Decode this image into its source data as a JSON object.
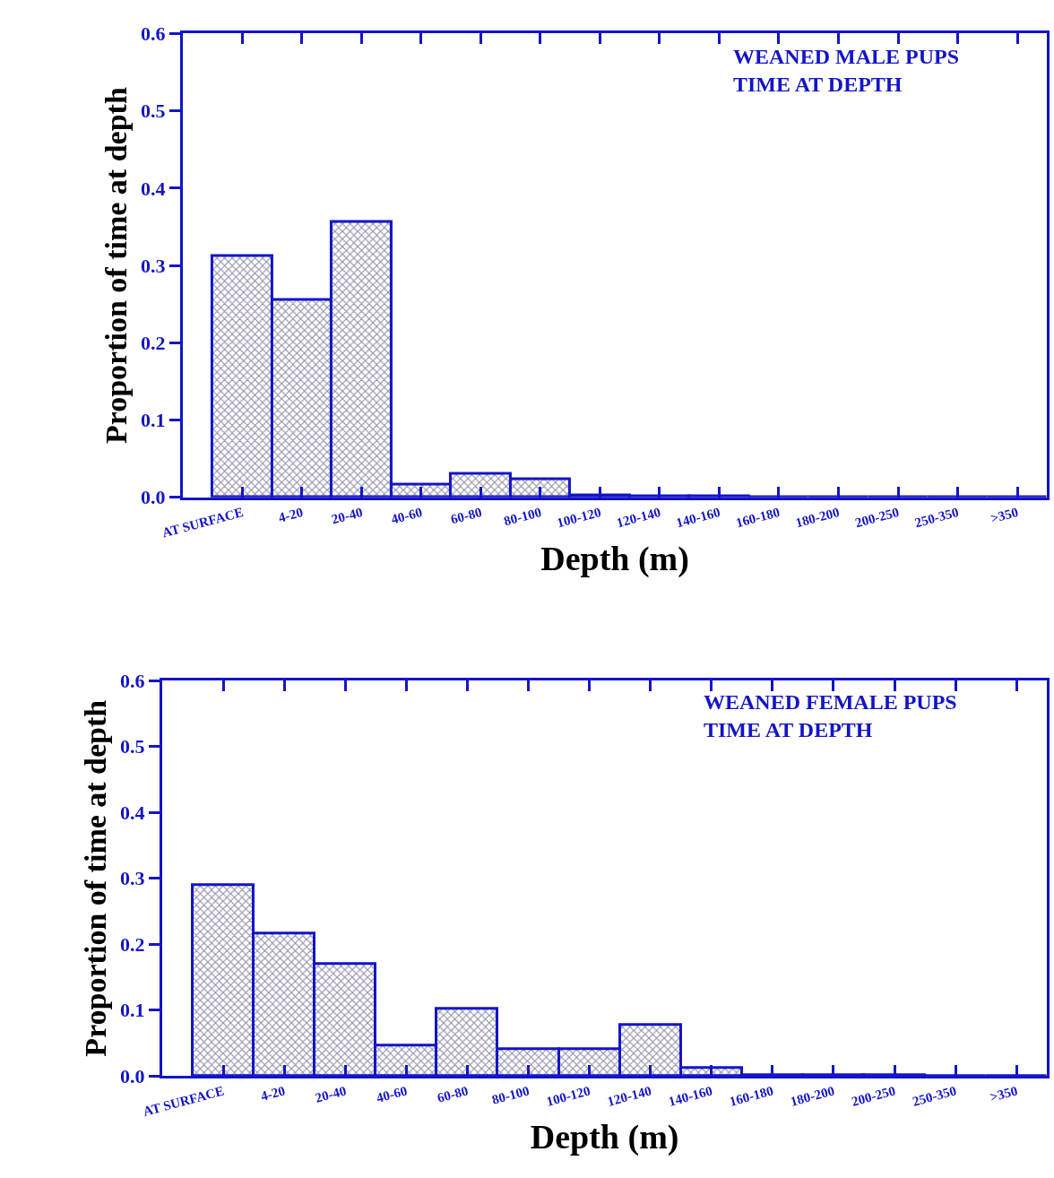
{
  "chart_data": [
    {
      "type": "bar",
      "xlabel": "Depth (m)",
      "ylabel": "Proportion of time at depth",
      "categories": [
        "AT SURFACE",
        "4-20",
        "20-40",
        "40-60",
        "60-80",
        "80-100",
        "100-120",
        "120-140",
        "140-160",
        "160-180",
        "180-200",
        "200-250",
        "250-350",
        ">350"
      ],
      "values": [
        0.312,
        0.255,
        0.357,
        0.017,
        0.031,
        0.024,
        0.003,
        0.002,
        0.001,
        0,
        0,
        0,
        0,
        0
      ],
      "color": "#1414c8",
      "ylim": [
        0,
        0.6
      ],
      "yticks": [
        {
          "value": 0,
          "label": "0.0"
        },
        0.1,
        0.2,
        0.3,
        0.4,
        0.5,
        0.6
      ],
      "annotations": [
        "WEANED MALE PUPS\nTIME AT DEPTH"
      ]
    },
    {
      "type": "bar",
      "xlabel": "Depth (m)",
      "ylabel": "Proportion of time at depth",
      "categories": [
        "AT SURFACE",
        "4-20",
        "20-40",
        "40-60",
        "60-80",
        "80-100",
        "100-120",
        "120-140",
        "140-160",
        "160-180",
        "180-200",
        "200-250",
        "250-350",
        ">350"
      ],
      "values": [
        0.29,
        0.217,
        0.17,
        0.047,
        0.102,
        0.041,
        0.041,
        0.077,
        0.012,
        0.002,
        0.002,
        0.002,
        0,
        0
      ],
      "color": "#1414c8",
      "ylim": [
        0,
        0.6
      ],
      "yticks": [
        {
          "value": 0,
          "label": "0.0"
        },
        0.1,
        0.2,
        0.3,
        0.4,
        0.5,
        0.6
      ],
      "annotations": [
        "WEANED FEMALE PUPS\nTIME AT DEPTH"
      ]
    }
  ]
}
